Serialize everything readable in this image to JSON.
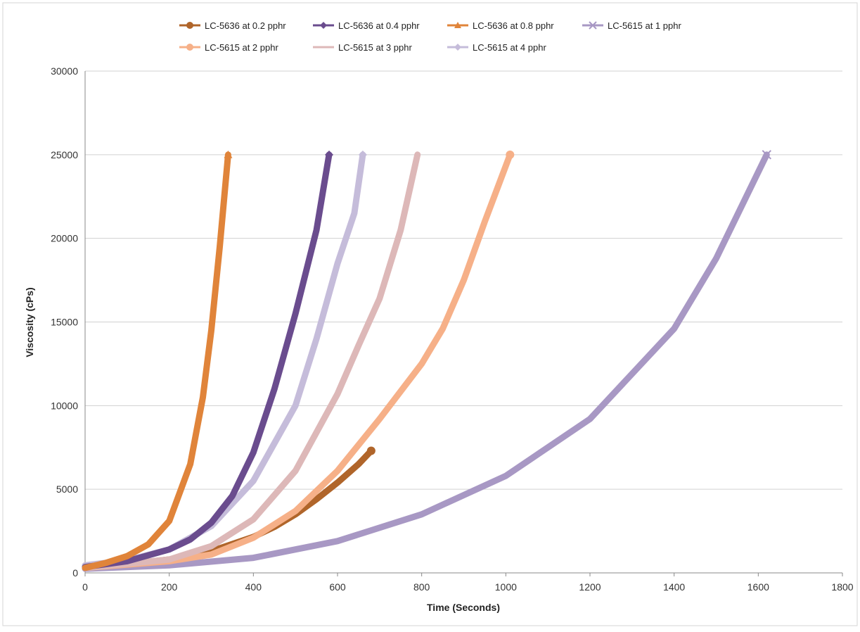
{
  "chart_data": {
    "type": "line",
    "title": "",
    "xlabel": "Time (Seconds)",
    "ylabel": "Viscosity (cPs)",
    "xlim": [
      0,
      1800
    ],
    "ylim": [
      0,
      30000
    ],
    "x_ticks": [
      0,
      200,
      400,
      600,
      800,
      1000,
      1200,
      1400,
      1600,
      1800
    ],
    "y_ticks": [
      0,
      5000,
      10000,
      15000,
      20000,
      25000,
      30000
    ],
    "grid": "horizontal",
    "legend_position": "top",
    "series": [
      {
        "name": "LC-5636 at 0.2 pphr",
        "color": "#B0652A",
        "marker": "circle",
        "points": [
          [
            0,
            350
          ],
          [
            100,
            520
          ],
          [
            200,
            800
          ],
          [
            300,
            1300
          ],
          [
            400,
            2150
          ],
          [
            450,
            2750
          ],
          [
            500,
            3500
          ],
          [
            550,
            4400
          ],
          [
            600,
            5400
          ],
          [
            650,
            6500
          ],
          [
            680,
            7300
          ]
        ]
      },
      {
        "name": "LC-5636 at 0.4 pphr",
        "color": "#6A4C8E",
        "marker": "diamond",
        "points": [
          [
            0,
            350
          ],
          [
            100,
            700
          ],
          [
            200,
            1400
          ],
          [
            250,
            2000
          ],
          [
            300,
            3000
          ],
          [
            350,
            4600
          ],
          [
            400,
            7200
          ],
          [
            450,
            11000
          ],
          [
            500,
            15500
          ],
          [
            550,
            20500
          ],
          [
            580,
            25000
          ]
        ]
      },
      {
        "name": "LC-5636 at 0.8 pphr",
        "color": "#E0843A",
        "marker": "triangle",
        "points": [
          [
            0,
            300
          ],
          [
            50,
            600
          ],
          [
            100,
            1000
          ],
          [
            150,
            1700
          ],
          [
            200,
            3100
          ],
          [
            250,
            6500
          ],
          [
            280,
            10500
          ],
          [
            300,
            14500
          ],
          [
            320,
            19500
          ],
          [
            340,
            25000
          ]
        ]
      },
      {
        "name": "LC-5615 at 1 pphr",
        "color": "#A898C4",
        "marker": "x",
        "points": [
          [
            0,
            250
          ],
          [
            200,
            450
          ],
          [
            400,
            900
          ],
          [
            600,
            1900
          ],
          [
            800,
            3500
          ],
          [
            1000,
            5800
          ],
          [
            1200,
            9200
          ],
          [
            1400,
            14600
          ],
          [
            1500,
            18800
          ],
          [
            1620,
            25000
          ]
        ]
      },
      {
        "name": "LC-5615 at 2 pphr",
        "color": "#F6B088",
        "marker": "circle",
        "points": [
          [
            0,
            300
          ],
          [
            200,
            700
          ],
          [
            300,
            1100
          ],
          [
            400,
            2100
          ],
          [
            500,
            3700
          ],
          [
            600,
            6100
          ],
          [
            700,
            9200
          ],
          [
            800,
            12500
          ],
          [
            850,
            14600
          ],
          [
            900,
            17500
          ],
          [
            950,
            21000
          ],
          [
            1010,
            25000
          ]
        ]
      },
      {
        "name": "LC-5615 at 3 pphr",
        "color": "#DDB8B8",
        "marker": "line",
        "points": [
          [
            0,
            300
          ],
          [
            200,
            800
          ],
          [
            300,
            1600
          ],
          [
            400,
            3200
          ],
          [
            500,
            6100
          ],
          [
            600,
            10700
          ],
          [
            650,
            13600
          ],
          [
            700,
            16400
          ],
          [
            750,
            20500
          ],
          [
            790,
            25000
          ]
        ]
      },
      {
        "name": "LC-5615 at 4 pphr",
        "color": "#C5BCDA",
        "marker": "diamond",
        "points": [
          [
            0,
            450
          ],
          [
            100,
            750
          ],
          [
            200,
            1400
          ],
          [
            300,
            2800
          ],
          [
            400,
            5500
          ],
          [
            500,
            10000
          ],
          [
            550,
            14000
          ],
          [
            600,
            18500
          ],
          [
            640,
            21500
          ],
          [
            660,
            25000
          ]
        ]
      }
    ]
  }
}
